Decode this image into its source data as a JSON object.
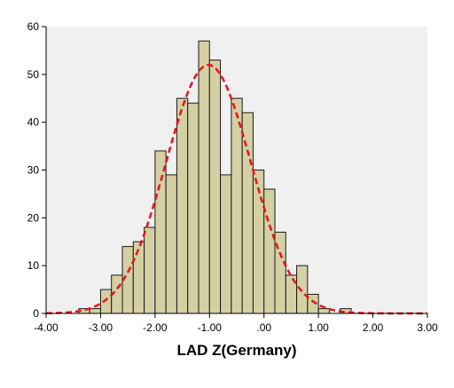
{
  "chart_data": {
    "type": "histogram",
    "title": "",
    "xlabel": "LAD Z(Germany)",
    "ylabel": "",
    "xlim": [
      -4.0,
      3.0
    ],
    "ylim": [
      0,
      60
    ],
    "x_ticks": [
      -4,
      -3,
      -2,
      -1,
      0,
      1,
      2,
      3
    ],
    "x_tick_labels": [
      "-4.00",
      "-3.00",
      "-2.00",
      "-1.00",
      ".00",
      "1.00",
      "2.00",
      "3.00"
    ],
    "y_ticks": [
      0,
      10,
      20,
      30,
      40,
      50,
      60
    ],
    "y_tick_labels": [
      "0",
      "10",
      "20",
      "30",
      "40",
      "50",
      "60"
    ],
    "bin_width": 0.2,
    "bins": [
      {
        "x0": -3.4,
        "x1": -3.2,
        "count": 1
      },
      {
        "x0": -3.2,
        "x1": -3.0,
        "count": 1
      },
      {
        "x0": -3.0,
        "x1": -2.8,
        "count": 5
      },
      {
        "x0": -2.8,
        "x1": -2.6,
        "count": 8
      },
      {
        "x0": -2.6,
        "x1": -2.4,
        "count": 14
      },
      {
        "x0": -2.4,
        "x1": -2.2,
        "count": 15
      },
      {
        "x0": -2.2,
        "x1": -2.0,
        "count": 18
      },
      {
        "x0": -2.0,
        "x1": -1.8,
        "count": 34
      },
      {
        "x0": -1.8,
        "x1": -1.6,
        "count": 29
      },
      {
        "x0": -1.6,
        "x1": -1.4,
        "count": 45
      },
      {
        "x0": -1.4,
        "x1": -1.2,
        "count": 44
      },
      {
        "x0": -1.2,
        "x1": -1.0,
        "count": 57
      },
      {
        "x0": -1.0,
        "x1": -0.8,
        "count": 53
      },
      {
        "x0": -0.8,
        "x1": -0.6,
        "count": 29
      },
      {
        "x0": -0.6,
        "x1": -0.4,
        "count": 45
      },
      {
        "x0": -0.4,
        "x1": -0.2,
        "count": 42
      },
      {
        "x0": -0.2,
        "x1": 0.0,
        "count": 30
      },
      {
        "x0": 0.0,
        "x1": 0.2,
        "count": 26
      },
      {
        "x0": 0.2,
        "x1": 0.4,
        "count": 17
      },
      {
        "x0": 0.4,
        "x1": 0.6,
        "count": 8
      },
      {
        "x0": 0.6,
        "x1": 0.8,
        "count": 10
      },
      {
        "x0": 0.8,
        "x1": 1.0,
        "count": 4
      },
      {
        "x0": 1.0,
        "x1": 1.2,
        "count": 1
      },
      {
        "x0": 1.4,
        "x1": 1.6,
        "count": 1
      }
    ],
    "normal_curve": {
      "mean": -1.02,
      "sd": 0.78,
      "peak": 52
    },
    "colors": {
      "bar_fill": "#d4d0a4",
      "bar_stroke": "#1a1a1a",
      "curve": "#e8121a",
      "plot_background": "#f0f0f0",
      "page_background": "#ffffff"
    },
    "grid": false,
    "legend": "none"
  }
}
